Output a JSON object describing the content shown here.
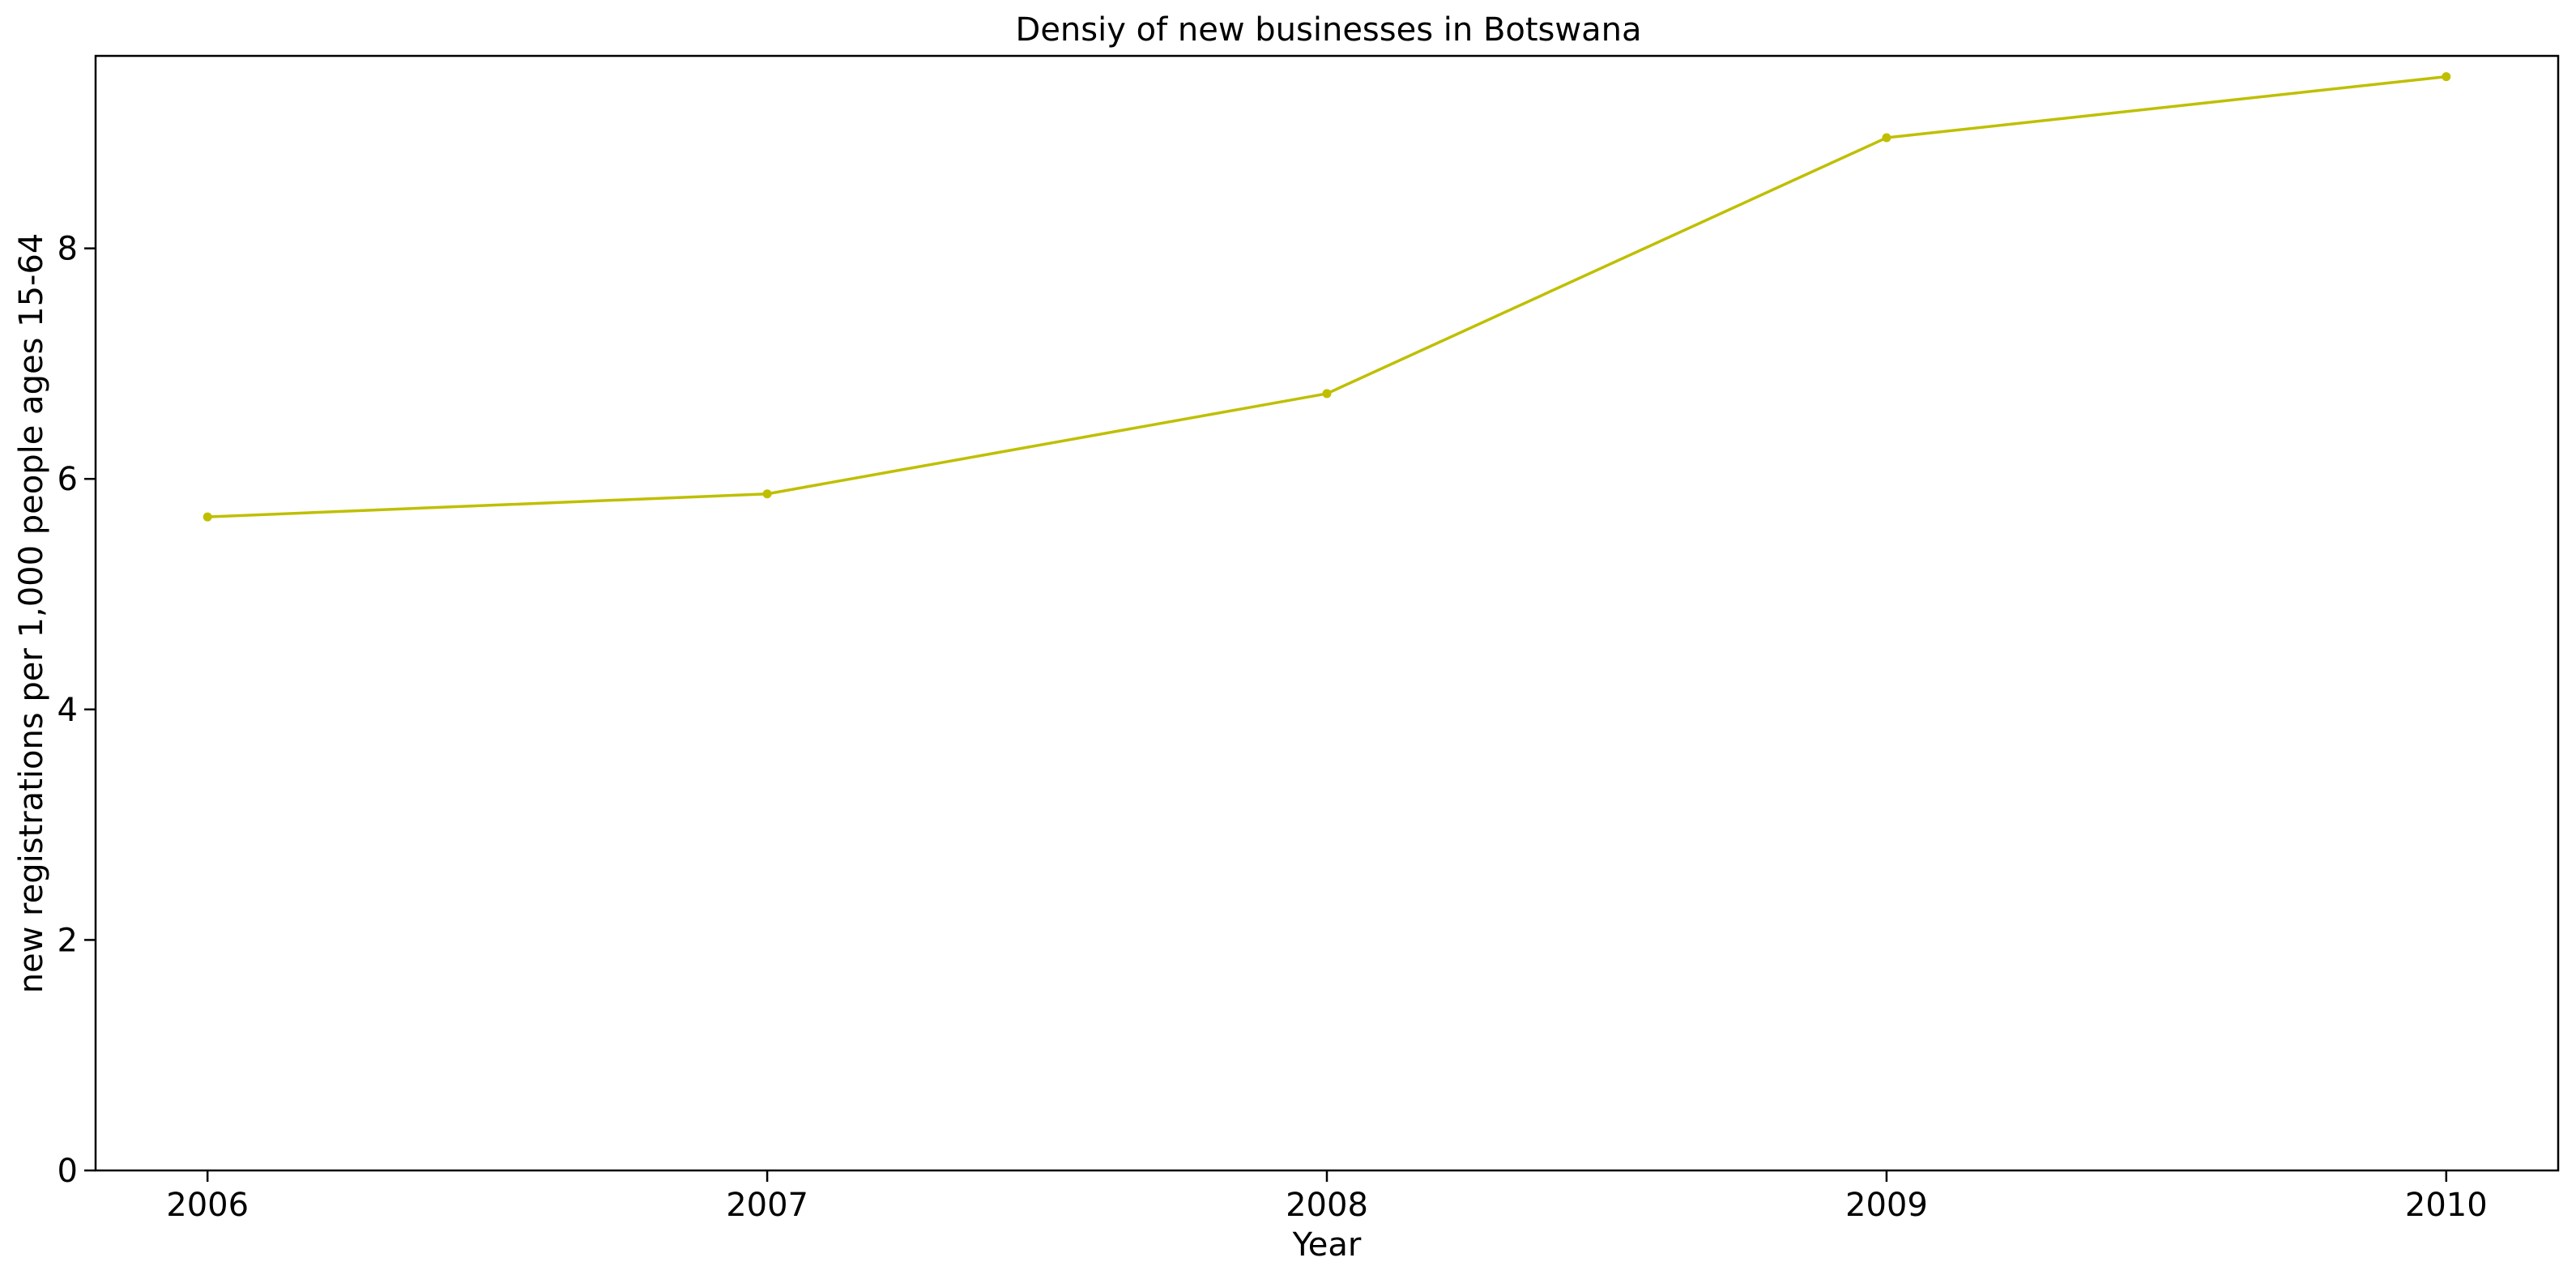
{
  "chart_data": {
    "type": "line",
    "title": "Densiy of new businesses in Botswana",
    "xlabel": "Year",
    "ylabel": "new registrations per 1,000 people ages 15-64",
    "x": [
      "2006",
      "2007",
      "2008",
      "2009",
      "2010"
    ],
    "series": [
      {
        "values": [
          5.67,
          5.87,
          6.74,
          8.96,
          9.49
        ],
        "color": "#bfbf00",
        "marker": "dot"
      }
    ],
    "xlim": [
      2005.8,
      2010.2
    ],
    "ylim": [
      0,
      9.67
    ],
    "yticks": [
      0,
      2,
      4,
      6,
      8
    ],
    "grid": false,
    "legend": "none"
  }
}
